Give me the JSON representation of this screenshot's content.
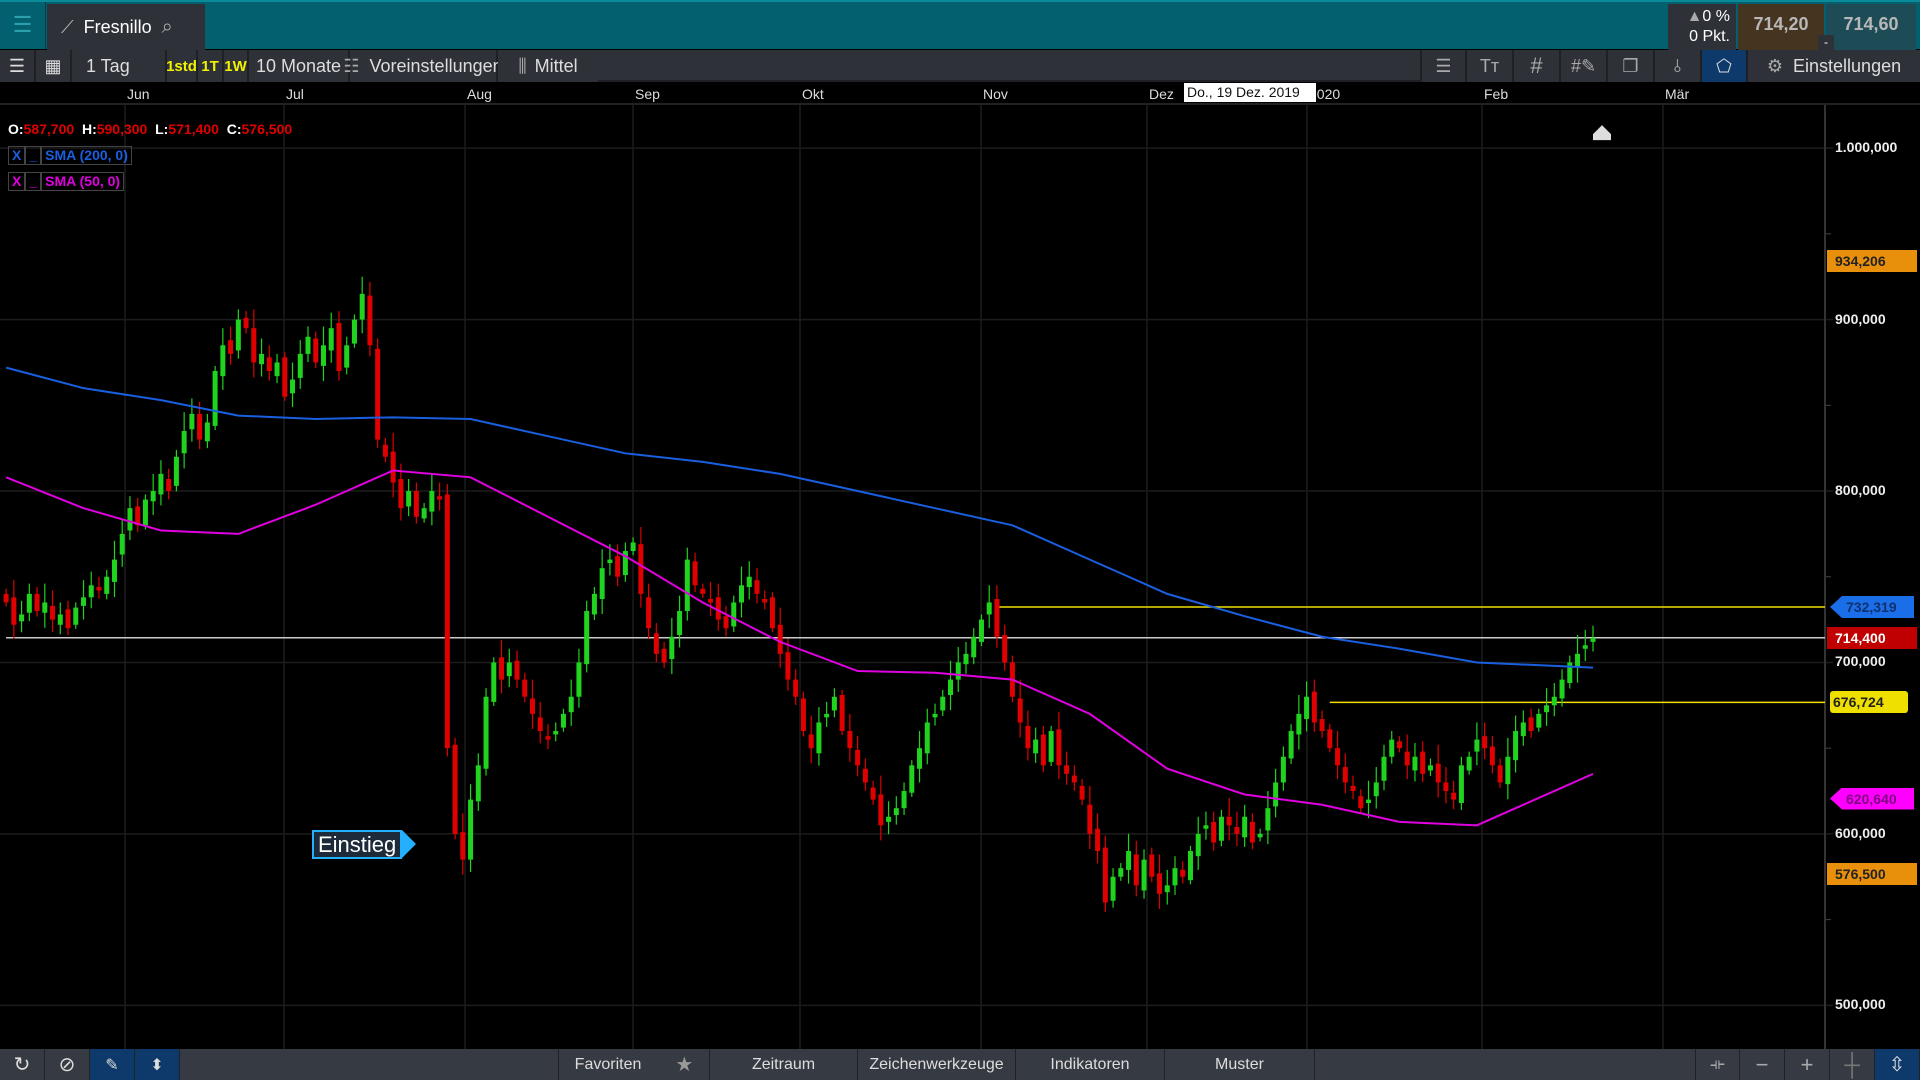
{
  "header": {
    "instrument": "Fresnillo",
    "change_pct": "0 %",
    "change_pts": "0 Pkt.",
    "bid": "714,20",
    "ask": "714,60",
    "dash": "-"
  },
  "toolbar": {
    "interval": "1 Tag",
    "quick": [
      "1std",
      "1T",
      "1W"
    ],
    "range": "10 Monate",
    "presets": "Voreinstellungen",
    "chart_type": "Mittel",
    "settings": "Einstellungen"
  },
  "date_axis": {
    "labels": [
      "Jun",
      "Jul",
      "Aug",
      "Sep",
      "Okt",
      "Nov",
      "Dez",
      "2020",
      "Feb",
      "Mär"
    ],
    "tooltip": "Do., 19 Dez. 2019"
  },
  "ohlc": {
    "o_label": "O:",
    "o": "587,700",
    "h_label": "H:",
    "h": "590,300",
    "l_label": "L:",
    "l": "571,400",
    "c_label": "C:",
    "c": "576,500"
  },
  "indicators": [
    {
      "x": "X",
      "line": "_",
      "name": "SMA (200, 0)",
      "color": "#1a5fe0"
    },
    {
      "x": "X",
      "line": "_",
      "name": "SMA (50, 0)",
      "color": "#e000e0"
    }
  ],
  "entry_label": "Einstieg",
  "price_axis": {
    "ticks": [
      "1.000,000",
      "900,000",
      "800,000",
      "700,000",
      "600,000",
      "500,000"
    ],
    "tick_values": [
      1000,
      900,
      800,
      700,
      600,
      500
    ],
    "tags": [
      {
        "text": "934,206",
        "value": 934.206,
        "color": "#e8900c"
      },
      {
        "text": "732,319",
        "value": 732.319,
        "color": "#1a6ee8"
      },
      {
        "text": "714,400",
        "value": 714.4,
        "color": "#c00000"
      },
      {
        "text": "676,724",
        "value": 676.724,
        "color": "#f0e000"
      },
      {
        "text": "620,640",
        "value": 620.64,
        "color": "#ff00ff"
      },
      {
        "text": "576,500",
        "value": 576.5,
        "color": "#e8900c"
      }
    ]
  },
  "chart_data": {
    "type": "candlestick",
    "ylim": [
      480,
      1010
    ],
    "closes": [
      735,
      722,
      728,
      740,
      730,
      735,
      725,
      728,
      720,
      732,
      738,
      745,
      742,
      750,
      760,
      775,
      790,
      780,
      795,
      800,
      810,
      800,
      820,
      835,
      845,
      830,
      840,
      870,
      885,
      880,
      900,
      895,
      875,
      880,
      870,
      875,
      855,
      865,
      880,
      890,
      875,
      885,
      895,
      870,
      885,
      900,
      915,
      885,
      830,
      820,
      805,
      790,
      800,
      785,
      790,
      800,
      795,
      650,
      600,
      585,
      620,
      640,
      680,
      700,
      690,
      700,
      690,
      680,
      670,
      660,
      655,
      660,
      670,
      680,
      700,
      730,
      740,
      755,
      760,
      750,
      765,
      770,
      740,
      720,
      705,
      700,
      715,
      730,
      760,
      745,
      740,
      735,
      725,
      720,
      735,
      745,
      750,
      740,
      735,
      720,
      705,
      690,
      680,
      660,
      650,
      665,
      670,
      680,
      660,
      650,
      640,
      630,
      620,
      605,
      610,
      615,
      625,
      640,
      650,
      665,
      670,
      680,
      690,
      700,
      705,
      715,
      725,
      735,
      715,
      700,
      680,
      665,
      650,
      655,
      640,
      660,
      640,
      635,
      630,
      620,
      600,
      590,
      560,
      575,
      580,
      590,
      570,
      585,
      575,
      565,
      570,
      580,
      575,
      590,
      600,
      605,
      595,
      610,
      605,
      600,
      610,
      595,
      600,
      615,
      630,
      645,
      660,
      670,
      680,
      665,
      660,
      650,
      640,
      630,
      625,
      615,
      620,
      630,
      645,
      655,
      650,
      640,
      645,
      635,
      640,
      630,
      625,
      620,
      640,
      645,
      655,
      650,
      640,
      630,
      645,
      660,
      665,
      660,
      670,
      675,
      680,
      690,
      700,
      705,
      710,
      714.4
    ],
    "sma_200_every_10th": [
      872,
      860,
      853,
      844,
      842,
      843,
      842,
      832,
      822,
      817,
      810,
      800,
      790,
      780,
      760,
      740,
      727,
      715,
      708,
      700,
      698,
      697
    ],
    "sma_50_every_10th": [
      808,
      790,
      777,
      775,
      792,
      812,
      808,
      785,
      762,
      735,
      712,
      695,
      694,
      690,
      670,
      638,
      623,
      617,
      607,
      605,
      625,
      635
    ],
    "hlines": [
      {
        "value": 732.319,
        "color": "#f0e000"
      },
      {
        "value": 714.4,
        "color": "#cccccc"
      },
      {
        "value": 676.724,
        "color": "#f0e000"
      }
    ]
  },
  "bottom": {
    "tabs": [
      "Favoriten",
      "Zeitraum",
      "Zeichenwerkzeuge",
      "Indikatoren",
      "Muster"
    ]
  }
}
